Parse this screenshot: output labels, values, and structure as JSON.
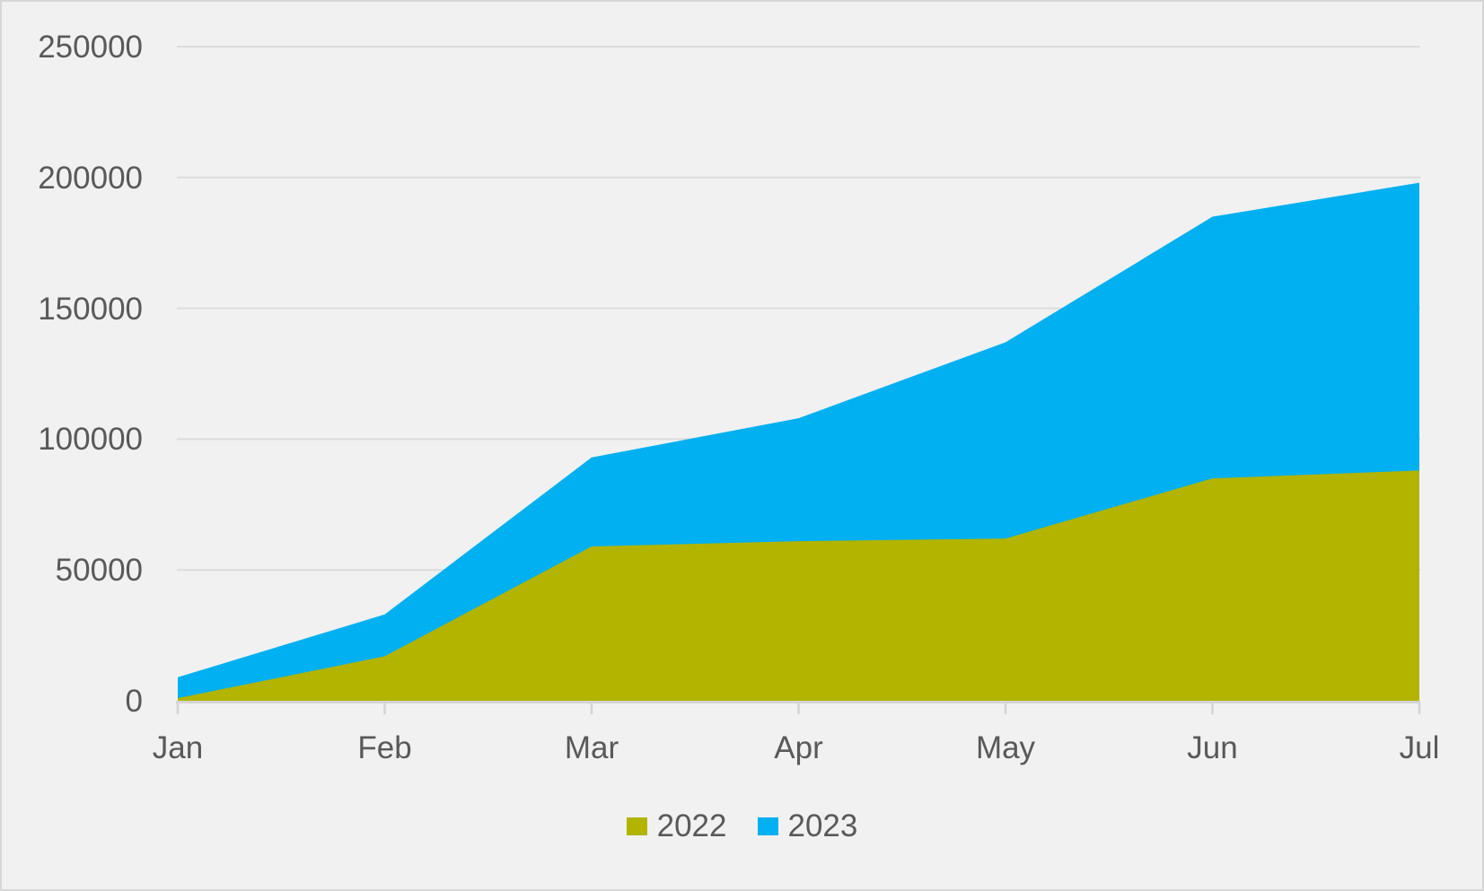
{
  "window": {
    "background_color": "#F1F1F1",
    "border_color": "#D7D7D7"
  },
  "chart_data": {
    "type": "area",
    "title": "",
    "xlabel": "",
    "ylabel": "",
    "categories": [
      "Jan",
      "Feb",
      "Mar",
      "Apr",
      "May",
      "Jun",
      "Jul"
    ],
    "series": [
      {
        "name": "2022",
        "color": "#B2B400",
        "values": [
          1000,
          17000,
          59000,
          61000,
          62000,
          85000,
          88000
        ]
      },
      {
        "name": "2023",
        "color": "#00B0F0",
        "values": [
          9000,
          33000,
          93000,
          108000,
          137000,
          185000,
          198000
        ]
      }
    ],
    "draw_order_front_series": "2022",
    "ylim": [
      0,
      250000
    ],
    "yticks": [
      0,
      50000,
      100000,
      150000,
      200000,
      250000
    ],
    "ytick_labels": [
      "0",
      "50000",
      "100000",
      "150000",
      "200000",
      "250000"
    ],
    "grid": "horizontal",
    "gridline_color": "#DCDCDC",
    "axis_line_color": "#D4D4D4",
    "tick_label_color": "#595959",
    "legend_position": "bottom-center",
    "legend_entries": [
      "2022",
      "2023"
    ]
  }
}
